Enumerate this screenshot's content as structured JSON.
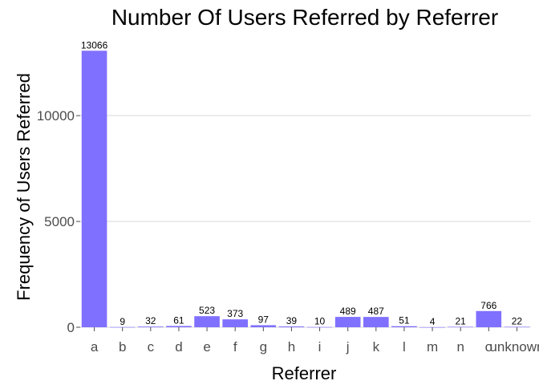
{
  "chart_data": {
    "type": "bar",
    "title": "Number Of Users Referred by Referrer",
    "xlabel": "Referrer",
    "ylabel": "Frequency of Users Referred",
    "categories": [
      "a",
      "b",
      "c",
      "d",
      "e",
      "f",
      "g",
      "h",
      "i",
      "j",
      "k",
      "l",
      "m",
      "n",
      "o",
      "unknown"
    ],
    "values": [
      13066,
      9,
      32,
      61,
      523,
      373,
      97,
      39,
      10,
      489,
      487,
      51,
      4,
      21,
      766,
      22
    ],
    "data_labels": [
      "13066",
      "9",
      "32",
      "61",
      "523",
      "373",
      "97",
      "39",
      "10",
      "489",
      "487",
      "51",
      "4",
      "21",
      "766",
      "22"
    ],
    "ylim": [
      0,
      13720
    ],
    "yticks": [
      0,
      5000,
      10000
    ],
    "ytick_labels": [
      "0",
      "5000",
      "10000"
    ],
    "grid": "horizontal",
    "legend": "none",
    "colors": {
      "bar": "#8070ff",
      "grid": "#d9d9d9",
      "tick_text": "#4d4d4d"
    }
  }
}
